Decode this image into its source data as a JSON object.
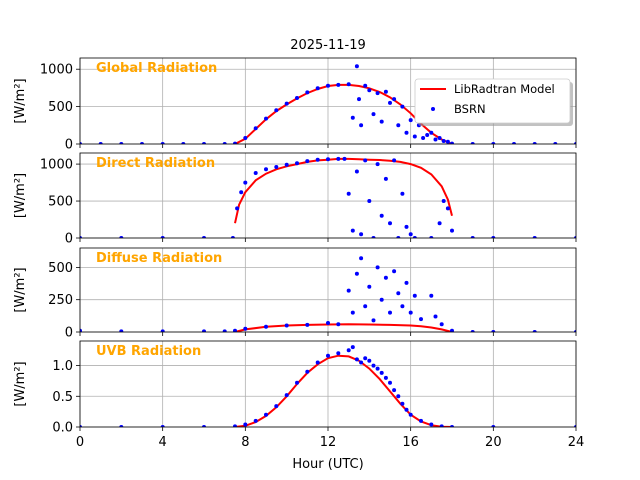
{
  "chart_data": {
    "type": "line",
    "title": "2025-11-19",
    "xlabel": "Hour (UTC)",
    "xlim": [
      0,
      24
    ],
    "xticks": [
      0,
      4,
      8,
      12,
      16,
      20,
      24
    ],
    "xtick_labels": [
      "0",
      "4",
      "8",
      "12",
      "16",
      "20",
      "24"
    ],
    "legend": {
      "placement": "top-right",
      "entries": [
        "LibRadtran Model",
        "BSRN"
      ]
    },
    "colors": {
      "model": "#ff0000",
      "obs": "#0000ff",
      "panel_title": "#ffa500",
      "grid": "#b0b0b0"
    },
    "panels": [
      {
        "title": "Global Radiation",
        "ylabel": "[W/m²]",
        "ylim": [
          0,
          1150
        ],
        "yticks": [
          0,
          500,
          1000
        ],
        "ytick_labels": [
          "0",
          "500",
          "1000"
        ],
        "series": [
          {
            "name": "LibRadtran Model",
            "kind": "line",
            "x": [
              7.5,
              8,
              8.5,
              9,
              9.5,
              10,
              10.5,
              11,
              11.5,
              12,
              12.5,
              13,
              13.5,
              14,
              14.5,
              15,
              15.5,
              16,
              16.5,
              17,
              17.5,
              18
            ],
            "y": [
              0,
              70,
              200,
              330,
              440,
              530,
              610,
              680,
              735,
              775,
              790,
              790,
              775,
              745,
              695,
              625,
              530,
              410,
              270,
              150,
              60,
              0
            ]
          },
          {
            "name": "BSRN",
            "kind": "scatter",
            "x": [
              0,
              1,
              2,
              3,
              4,
              5,
              6,
              7,
              7.5,
              8,
              8.5,
              9,
              9.5,
              10,
              10.5,
              11,
              11.5,
              12,
              12.5,
              13,
              13.2,
              13.4,
              13.5,
              13.6,
              13.8,
              14,
              14.2,
              14.4,
              14.6,
              14.8,
              15,
              15.2,
              15.4,
              15.6,
              15.8,
              16,
              16.2,
              16.4,
              16.6,
              16.8,
              17,
              17.2,
              17.4,
              17.6,
              17.8,
              18,
              19,
              20,
              21,
              22,
              23,
              24
            ],
            "y": [
              0,
              0,
              0,
              0,
              0,
              0,
              0,
              0,
              5,
              80,
              210,
              340,
              450,
              540,
              615,
              690,
              745,
              780,
              790,
              800,
              350,
              1040,
              600,
              250,
              780,
              720,
              400,
              680,
              300,
              700,
              550,
              600,
              250,
              500,
              150,
              320,
              100,
              250,
              80,
              120,
              150,
              60,
              80,
              40,
              30,
              5,
              0,
              0,
              0,
              0,
              0,
              0
            ]
          }
        ]
      },
      {
        "title": "Direct Radiation",
        "ylabel": "[W/m²]",
        "ylim": [
          0,
          1150
        ],
        "yticks": [
          0,
          500,
          1000
        ],
        "ytick_labels": [
          "0",
          "500",
          "1000"
        ],
        "series": [
          {
            "name": "LibRadtran Model",
            "kind": "line",
            "x": [
              7.5,
              7.7,
              8,
              8.5,
              9,
              9.5,
              10,
              10.5,
              11,
              11.5,
              12,
              12.5,
              13,
              13.5,
              14,
              14.5,
              15,
              15.5,
              16,
              16.5,
              17,
              17.5,
              17.8,
              18
            ],
            "y": [
              200,
              450,
              620,
              780,
              870,
              930,
              970,
              1000,
              1030,
              1050,
              1060,
              1070,
              1070,
              1065,
              1060,
              1055,
              1045,
              1030,
              1000,
              950,
              860,
              700,
              520,
              300
            ]
          },
          {
            "name": "BSRN",
            "kind": "scatter",
            "x": [
              0,
              2,
              4,
              6,
              7.4,
              7.6,
              7.8,
              8,
              8.5,
              9,
              9.5,
              10,
              10.5,
              11,
              11.5,
              12,
              12.5,
              12.8,
              13,
              13.2,
              13.4,
              13.6,
              13.8,
              14,
              14.2,
              14.4,
              14.6,
              14.8,
              15,
              15.2,
              15.4,
              15.6,
              15.8,
              16,
              16.2,
              17,
              17.4,
              17.6,
              17.8,
              18,
              19,
              20,
              22,
              24
            ],
            "y": [
              0,
              0,
              0,
              0,
              0,
              400,
              620,
              750,
              880,
              930,
              960,
              990,
              1010,
              1040,
              1060,
              1065,
              1070,
              1070,
              600,
              100,
              900,
              50,
              1050,
              500,
              0,
              1000,
              300,
              800,
              200,
              1050,
              0,
              600,
              150,
              50,
              0,
              0,
              200,
              500,
              400,
              100,
              0,
              0,
              0,
              0
            ]
          }
        ]
      },
      {
        "title": "Diffuse Radiation",
        "ylabel": "[W/m²]",
        "ylim": [
          0,
          650
        ],
        "yticks": [
          0,
          250,
          500
        ],
        "ytick_labels": [
          "0",
          "250",
          "500"
        ],
        "series": [
          {
            "name": "LibRadtran Model",
            "kind": "line",
            "x": [
              7.5,
              8,
              9,
              10,
              11,
              12,
              13,
              14,
              15,
              16,
              16.5,
              17,
              17.5,
              18
            ],
            "y": [
              0,
              20,
              40,
              50,
              55,
              58,
              60,
              58,
              55,
              50,
              45,
              35,
              20,
              0
            ]
          },
          {
            "name": "BSRN",
            "kind": "scatter",
            "x": [
              0,
              2,
              4,
              6,
              7,
              7.5,
              8,
              9,
              10,
              11,
              12,
              12.5,
              13,
              13.2,
              13.4,
              13.6,
              13.8,
              14,
              14.2,
              14.4,
              14.6,
              14.8,
              15,
              15.2,
              15.4,
              15.6,
              15.8,
              16,
              16.2,
              16.5,
              17,
              17.2,
              17.5,
              18,
              19,
              20,
              22,
              24
            ],
            "y": [
              10,
              5,
              5,
              5,
              5,
              10,
              25,
              40,
              50,
              55,
              70,
              60,
              320,
              150,
              450,
              570,
              200,
              350,
              90,
              500,
              250,
              420,
              150,
              470,
              300,
              200,
              380,
              150,
              280,
              100,
              280,
              120,
              60,
              10,
              0,
              0,
              0,
              0
            ]
          }
        ]
      },
      {
        "title": "UVB Radiation",
        "ylabel": "[W/m²]",
        "ylim": [
          0,
          1.4
        ],
        "yticks": [
          0,
          0.5,
          1.0
        ],
        "ytick_labels": [
          "0.0",
          "0.5",
          "1.0"
        ],
        "series": [
          {
            "name": "LibRadtran Model",
            "kind": "line",
            "x": [
              7.5,
              8,
              8.5,
              9,
              9.5,
              10,
              10.5,
              11,
              11.5,
              12,
              12.5,
              13,
              13.5,
              14,
              14.5,
              15,
              15.5,
              16,
              16.5,
              17,
              17.5,
              18
            ],
            "y": [
              0,
              0.02,
              0.08,
              0.18,
              0.32,
              0.5,
              0.7,
              0.88,
              1.02,
              1.12,
              1.16,
              1.15,
              1.08,
              0.95,
              0.78,
              0.58,
              0.38,
              0.2,
              0.09,
              0.03,
              0.005,
              0
            ]
          },
          {
            "name": "BSRN",
            "kind": "scatter",
            "x": [
              0,
              2,
              4,
              6,
              7.5,
              8,
              8.5,
              9,
              9.5,
              10,
              10.5,
              11,
              11.5,
              12,
              12.5,
              13,
              13.2,
              13.4,
              13.6,
              13.8,
              14,
              14.2,
              14.4,
              14.6,
              14.8,
              15,
              15.2,
              15.4,
              15.6,
              15.8,
              16,
              16.5,
              17,
              17.5,
              18,
              20,
              24
            ],
            "y": [
              0,
              0,
              0,
              0,
              0.01,
              0.04,
              0.1,
              0.2,
              0.34,
              0.52,
              0.72,
              0.9,
              1.05,
              1.16,
              1.2,
              1.25,
              1.3,
              1.1,
              1.05,
              1.12,
              1.08,
              1.0,
              0.95,
              0.88,
              0.8,
              0.72,
              0.6,
              0.5,
              0.38,
              0.28,
              0.2,
              0.1,
              0.04,
              0.01,
              0,
              0,
              0
            ]
          }
        ]
      }
    ]
  }
}
